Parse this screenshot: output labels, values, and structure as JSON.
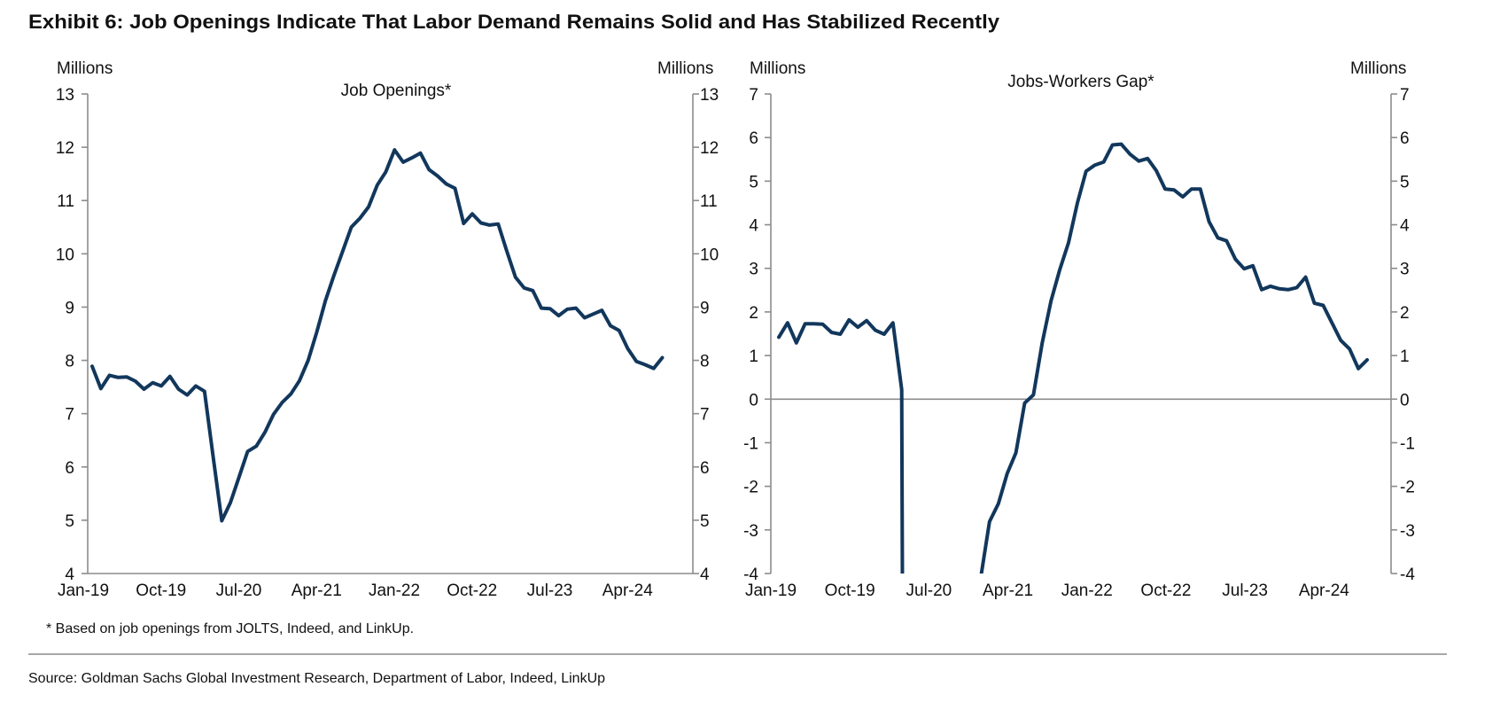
{
  "exhibit_title": "Exhibit 6: Job Openings Indicate That Labor Demand Remains Solid and Has Stabilized Recently",
  "footnote": "* Based on job openings from JOLTS, Indeed, and LinkUp.",
  "source": "Source: Goldman Sachs Global Investment Research, Department of Labor, Indeed, LinkUp",
  "chart_data": [
    {
      "type": "line",
      "title": "Job Openings*",
      "ylabel_left": "Millions",
      "ylabel_right": "Millions",
      "ylim": [
        4,
        13
      ],
      "yticks": [
        "13",
        "12",
        "11",
        "10",
        "9",
        "8",
        "7",
        "6",
        "5",
        "4"
      ],
      "xtick_labels": [
        "Jan-19",
        "Oct-19",
        "Jul-20",
        "Apr-21",
        "Jan-22",
        "Oct-22",
        "Jul-23",
        "Apr-24"
      ],
      "grid": false,
      "line_color": "#12375c",
      "x": [
        "2019-01",
        "2019-02",
        "2019-03",
        "2019-04",
        "2019-05",
        "2019-06",
        "2019-07",
        "2019-08",
        "2019-09",
        "2019-10",
        "2019-11",
        "2019-12",
        "2020-01",
        "2020-02",
        "2020-03",
        "2020-04",
        "2020-05",
        "2020-06",
        "2020-07",
        "2020-08",
        "2020-09",
        "2020-10",
        "2020-11",
        "2020-12",
        "2021-01",
        "2021-02",
        "2021-03",
        "2021-04",
        "2021-05",
        "2021-06",
        "2021-07",
        "2021-08",
        "2021-09",
        "2021-10",
        "2021-11",
        "2021-12",
        "2022-01",
        "2022-02",
        "2022-03",
        "2022-04",
        "2022-05",
        "2022-06",
        "2022-07",
        "2022-08",
        "2022-09",
        "2022-10",
        "2022-11",
        "2022-12",
        "2023-01",
        "2023-02",
        "2023-03",
        "2023-04",
        "2023-05",
        "2023-06",
        "2023-07",
        "2023-08",
        "2023-09",
        "2023-10",
        "2023-11",
        "2023-12",
        "2024-01",
        "2024-02",
        "2024-03",
        "2024-04",
        "2024-05",
        "2024-06",
        "2024-07"
      ],
      "values": [
        7.89,
        7.47,
        7.72,
        7.68,
        7.69,
        7.61,
        7.46,
        7.58,
        7.52,
        7.7,
        7.46,
        7.35,
        7.52,
        7.42,
        6.2,
        4.99,
        5.33,
        5.81,
        6.29,
        6.39,
        6.65,
        6.99,
        7.21,
        7.37,
        7.62,
        8.0,
        8.53,
        9.12,
        9.6,
        10.05,
        10.5,
        10.67,
        10.88,
        11.29,
        11.54,
        11.95,
        11.72,
        11.8,
        11.89,
        11.58,
        11.46,
        11.31,
        11.23,
        10.57,
        10.75,
        10.58,
        10.54,
        10.56,
        10.05,
        9.56,
        9.36,
        9.31,
        8.98,
        8.97,
        8.84,
        8.96,
        8.98,
        8.8,
        8.87,
        8.94,
        8.65,
        8.56,
        8.22,
        7.98,
        7.92,
        7.85,
        8.05
      ]
    },
    {
      "type": "line",
      "title": "Jobs-Workers Gap*",
      "ylabel_left": "Millions",
      "ylabel_right": "Millions",
      "ylim": [
        -4,
        7
      ],
      "yticks": [
        "7",
        "6",
        "5",
        "4",
        "3",
        "2",
        "1",
        "0",
        "-1",
        "-2",
        "-3",
        "-4"
      ],
      "xtick_labels": [
        "Jan-19",
        "Oct-19",
        "Jul-20",
        "Apr-21",
        "Jan-22",
        "Oct-22",
        "Jul-23",
        "Apr-24"
      ],
      "grid": false,
      "zero_line": true,
      "line_color": "#12375c",
      "x": [
        "2019-01",
        "2019-02",
        "2019-03",
        "2019-04",
        "2019-05",
        "2019-06",
        "2019-07",
        "2019-08",
        "2019-09",
        "2019-10",
        "2019-11",
        "2019-12",
        "2020-01",
        "2020-02",
        "2020-03",
        "2020-04",
        "2020-05",
        "2020-06",
        "2020-07",
        "2020-08",
        "2020-09",
        "2020-10",
        "2020-11",
        "2020-12",
        "2021-01",
        "2021-02",
        "2021-03",
        "2021-04",
        "2021-05",
        "2021-06",
        "2021-07",
        "2021-08",
        "2021-09",
        "2021-10",
        "2021-11",
        "2021-12",
        "2022-01",
        "2022-02",
        "2022-03",
        "2022-04",
        "2022-05",
        "2022-06",
        "2022-07",
        "2022-08",
        "2022-09",
        "2022-10",
        "2022-11",
        "2022-12",
        "2023-01",
        "2023-02",
        "2023-03",
        "2023-04",
        "2023-05",
        "2023-06",
        "2023-07",
        "2023-08",
        "2023-09",
        "2023-10",
        "2023-11",
        "2023-12",
        "2024-01",
        "2024-02",
        "2024-03",
        "2024-04",
        "2024-05",
        "2024-06",
        "2024-07",
        "2024-08"
      ],
      "values": [
        1.42,
        1.75,
        1.29,
        1.73,
        1.73,
        1.72,
        1.53,
        1.49,
        1.82,
        1.65,
        1.8,
        1.58,
        1.49,
        1.75,
        0.22,
        null,
        null,
        null,
        null,
        null,
        null,
        null,
        null,
        -4.1,
        -2.81,
        -2.4,
        -1.71,
        -1.23,
        -0.09,
        0.1,
        1.29,
        2.25,
        2.97,
        3.59,
        4.49,
        5.23,
        5.37,
        5.44,
        5.83,
        5.85,
        5.62,
        5.46,
        5.52,
        5.24,
        4.82,
        4.8,
        4.64,
        4.82,
        4.82,
        4.07,
        3.7,
        3.63,
        3.21,
        2.99,
        3.06,
        2.51,
        2.59,
        2.53,
        2.51,
        2.56,
        2.8,
        2.2,
        2.15,
        1.75,
        1.35,
        1.15,
        0.7,
        0.9
      ]
    }
  ]
}
